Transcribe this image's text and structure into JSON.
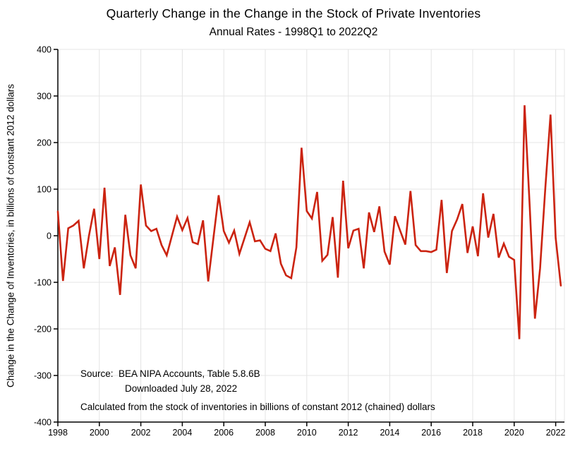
{
  "chart_data": {
    "type": "line",
    "title": "Quarterly Change in the Change in the Stock of Private Inventories",
    "subtitle": "Annual Rates - 1998Q1 to 2022Q2",
    "ylabel": "Change in the Change of Inventories, in billions of constant 2012 dollars",
    "xlabel": "",
    "ylim": [
      -400,
      400
    ],
    "yticks": [
      -400,
      -300,
      -200,
      -100,
      0,
      100,
      200,
      300,
      400
    ],
    "xticks": [
      1998,
      2000,
      2002,
      2004,
      2006,
      2008,
      2010,
      2012,
      2014,
      2016,
      2018,
      2020,
      2022
    ],
    "grid": true,
    "legend": "none",
    "line_color": "#cb2310",
    "grid_color": "#e4e4e4",
    "axis_color": "#000000",
    "series": [
      {
        "name": "Quarterly change in the change in the stock of private inventories",
        "start": "1998Q1",
        "end": "2022Q2",
        "frequency": "quarterly",
        "values": [
          52,
          -97,
          16,
          22,
          32,
          -70,
          0,
          58,
          -50,
          103,
          -65,
          -25,
          -127,
          45,
          -42,
          -70,
          110,
          22,
          10,
          15,
          -20,
          -42,
          0,
          41,
          12,
          38,
          -14,
          -18,
          33,
          -98,
          -5,
          87,
          10,
          -15,
          11,
          -39,
          -5,
          29,
          -12,
          -10,
          -28,
          -33,
          5,
          -60,
          -85,
          -91,
          -25,
          189,
          53,
          37,
          94,
          -54,
          -41,
          40,
          -90,
          118,
          -27,
          11,
          15,
          -70,
          50,
          8,
          63,
          -34,
          -62,
          42,
          11,
          -19,
          96,
          -20,
          -33,
          -33,
          -35,
          -30,
          77,
          -80,
          10,
          35,
          68,
          -37,
          20,
          -44,
          91,
          -4,
          47,
          -47,
          -17,
          -45,
          -52,
          -222,
          280,
          60,
          -178,
          -70,
          102,
          260,
          -5,
          -107
        ]
      }
    ]
  },
  "annotations": {
    "source_line1": "Source:  BEA NIPA Accounts, Table 5.8.6B",
    "source_line2": "Downloaded July 28, 2022",
    "note": "Calculated from the stock of inventories in billions of constant 2012 (chained) dollars"
  }
}
